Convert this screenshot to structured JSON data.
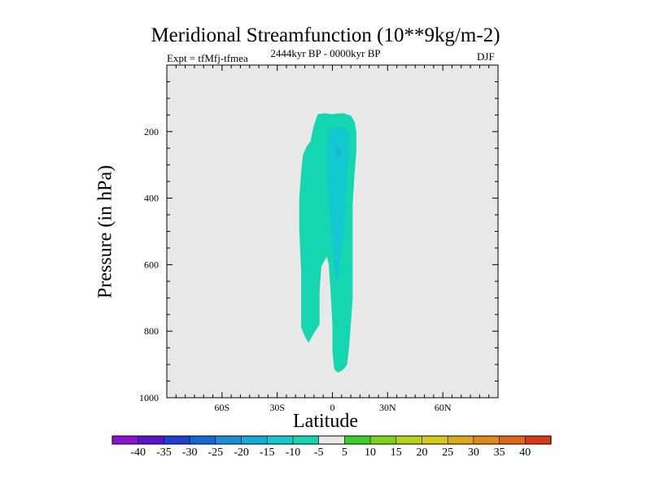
{
  "chart_data": {
    "type": "contour",
    "title": "Meridional Streamfunction (10**9kg/m-2)",
    "subtitle_left": "Expt = tfMfj-tfmea",
    "subtitle_center": "2444kyr BP - 0000kyr BP",
    "subtitle_right": "DJF",
    "xlabel": "Latitude",
    "ylabel": "Pressure (in hPa)",
    "xlim": [
      -90,
      90
    ],
    "ylim": [
      1000,
      0
    ],
    "x_ticks": [
      {
        "value": -60,
        "label": "60S"
      },
      {
        "value": -30,
        "label": "30S"
      },
      {
        "value": 0,
        "label": "0"
      },
      {
        "value": 30,
        "label": "30N"
      },
      {
        "value": 60,
        "label": "60N"
      }
    ],
    "y_ticks": [
      {
        "value": 200,
        "label": "200"
      },
      {
        "value": 400,
        "label": "400"
      },
      {
        "value": 600,
        "label": "600"
      },
      {
        "value": 800,
        "label": "800"
      },
      {
        "value": 1000,
        "label": "1000"
      }
    ],
    "background_color": "#e8e8e8",
    "colorbar": {
      "levels": [
        "-40",
        "-35",
        "-30",
        "-25",
        "-20",
        "-15",
        "-10",
        "-5",
        "5",
        "10",
        "15",
        "20",
        "25",
        "30",
        "35",
        "40"
      ],
      "colors": [
        "#8a15d6",
        "#5a14d0",
        "#1f3fd6",
        "#1667d6",
        "#1790d6",
        "#14acd6",
        "#14c8d0",
        "#14d6b0",
        "#e8e8e8",
        "#3ccf28",
        "#7ed41a",
        "#b6d21a",
        "#d8c81a",
        "#dca818",
        "#e08a18",
        "#e06818",
        "#dc3816"
      ]
    },
    "filled_regions": [
      {
        "level_range": "-10 to -5",
        "color": "#14d6b0",
        "polygon": [
          [
            -8,
            148
          ],
          [
            -4,
            145
          ],
          [
            0,
            148
          ],
          [
            2,
            146
          ],
          [
            6,
            145
          ],
          [
            10,
            152
          ],
          [
            12,
            170
          ],
          [
            13,
            200
          ],
          [
            13,
            260
          ],
          [
            12,
            330
          ],
          [
            11,
            420
          ],
          [
            11,
            500
          ],
          [
            11,
            560
          ],
          [
            11,
            600
          ],
          [
            11,
            700
          ],
          [
            10,
            780
          ],
          [
            9,
            850
          ],
          [
            8,
            900
          ],
          [
            6,
            915
          ],
          [
            3,
            925
          ],
          [
            1,
            915
          ],
          [
            0,
            860
          ],
          [
            0,
            780
          ],
          [
            -1,
            680
          ],
          [
            -2,
            600
          ],
          [
            -3,
            575
          ],
          [
            -6,
            605
          ],
          [
            -7,
            680
          ],
          [
            -7,
            780
          ],
          [
            -10,
            805
          ],
          [
            -13,
            835
          ],
          [
            -15,
            815
          ],
          [
            -17,
            790
          ],
          [
            -17,
            700
          ],
          [
            -17,
            620
          ],
          [
            -18,
            500
          ],
          [
            -18,
            400
          ],
          [
            -17,
            320
          ],
          [
            -16,
            270
          ],
          [
            -14,
            245
          ],
          [
            -12,
            230
          ],
          [
            -11,
            205
          ],
          [
            -10,
            180
          ]
        ]
      },
      {
        "level_range": "-15 to -10",
        "color": "#14c8d0",
        "polygon": [
          [
            -2,
            195
          ],
          [
            2,
            185
          ],
          [
            7,
            187
          ],
          [
            9,
            220
          ],
          [
            9,
            260
          ],
          [
            8,
            320
          ],
          [
            7,
            420
          ],
          [
            6,
            520
          ],
          [
            4,
            590
          ],
          [
            3,
            650
          ],
          [
            1,
            610
          ],
          [
            0,
            520
          ],
          [
            -2,
            420
          ],
          [
            -3,
            320
          ],
          [
            -3,
            240
          ]
        ]
      },
      {
        "level_range": "-20 to -15",
        "color": "#1ab6d9",
        "polygon": [
          [
            1,
            258
          ],
          [
            3,
            242
          ],
          [
            5,
            266
          ],
          [
            3,
            278
          ]
        ]
      }
    ]
  }
}
